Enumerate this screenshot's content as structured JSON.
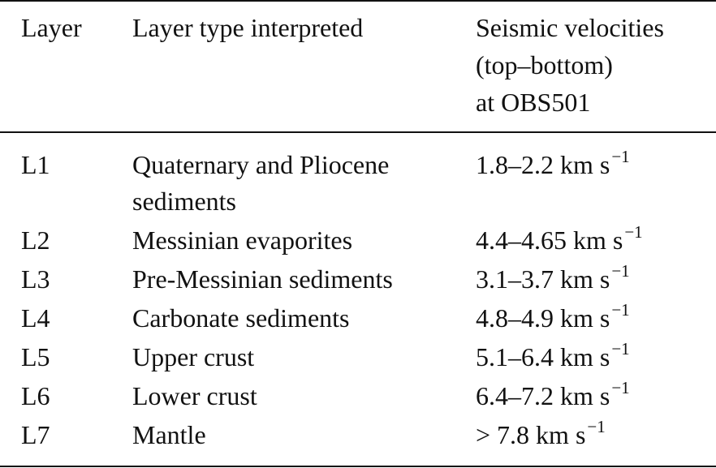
{
  "table": {
    "header": [
      "Layer",
      "Layer type interpreted",
      [
        "Seismic velocities",
        "(top–bottom)",
        "at OBS501"
      ]
    ],
    "rows": [
      [
        "L1",
        [
          "Quaternary and Pliocene",
          "sediments"
        ],
        {
          "value": "1.8–2.2 km s",
          "exponent": "−1"
        }
      ],
      [
        "L2",
        "Messinian evaporites",
        {
          "value": "4.4–4.65 km s",
          "exponent": "−1"
        }
      ],
      [
        "L3",
        "Pre-Messinian sediments",
        {
          "value": "3.1–3.7 km s",
          "exponent": "−1"
        }
      ],
      [
        "L4",
        "Carbonate sediments",
        {
          "value": "4.8–4.9 km s",
          "exponent": "−1"
        }
      ],
      [
        "L5",
        "Upper crust",
        {
          "value": "5.1–6.4 km s",
          "exponent": "−1"
        }
      ],
      [
        "L6",
        "Lower crust",
        {
          "value": "6.4–7.2 km s",
          "exponent": "−1"
        }
      ],
      [
        "L7",
        "Mantle",
        {
          "value": "> 7.8 km s",
          "exponent": "−1"
        }
      ]
    ]
  }
}
